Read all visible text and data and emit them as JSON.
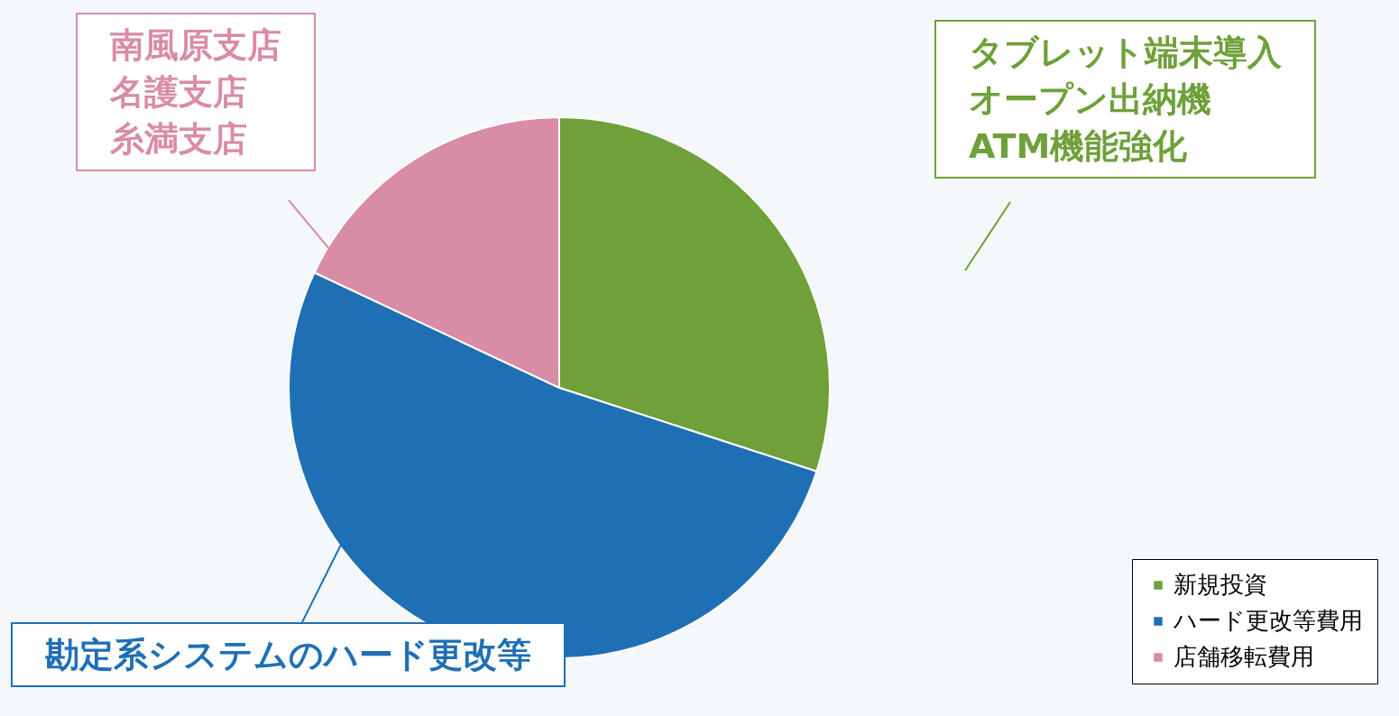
{
  "chart_data": {
    "type": "pie",
    "categories": [
      "新規投資",
      "ハード更改等費用",
      "店舗移転費用"
    ],
    "values": [
      30,
      52,
      18
    ],
    "colors": [
      "#6fa03a",
      "#1f6fb5",
      "#d98ca5"
    ],
    "legend": "bottom right",
    "annotations": [
      "タブレット端末導入",
      "オープン出納機",
      "ATM機能強化",
      "勘定系システムのハード更改等",
      "南風原支店",
      "名護支店",
      "糸満支店"
    ]
  }
}
